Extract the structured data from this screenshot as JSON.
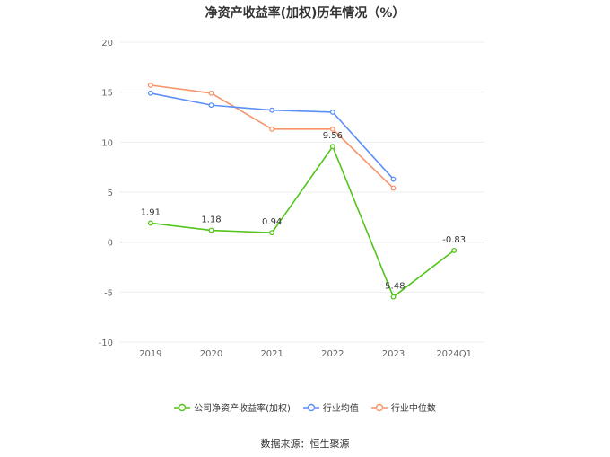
{
  "chart_data": {
    "type": "line",
    "title": "净资产收益率(加权)历年情况（%）",
    "categories": [
      "2019",
      "2020",
      "2021",
      "2022",
      "2023",
      "2024Q1"
    ],
    "ylim": [
      -10,
      20
    ],
    "yticks": [
      20,
      15,
      10,
      5,
      0,
      -5,
      -10
    ],
    "grid": true,
    "legend_position": "bottom",
    "series": [
      {
        "name": "公司净资产收益率(加权)",
        "color": "#52c41a",
        "values": [
          1.91,
          1.18,
          0.94,
          9.56,
          -5.48,
          -0.83
        ],
        "labels": [
          "1.91",
          "1.18",
          "0.94",
          "9.56",
          "-5.48",
          "-0.83"
        ]
      },
      {
        "name": "行业均值",
        "color": "#5b8ff9",
        "values": [
          14.9,
          13.7,
          13.2,
          13.0,
          6.3,
          null
        ]
      },
      {
        "name": "行业中位数",
        "color": "#f6946a",
        "values": [
          15.7,
          14.9,
          11.3,
          11.3,
          5.4,
          null
        ]
      }
    ]
  },
  "source": "数据来源：恒生聚源"
}
